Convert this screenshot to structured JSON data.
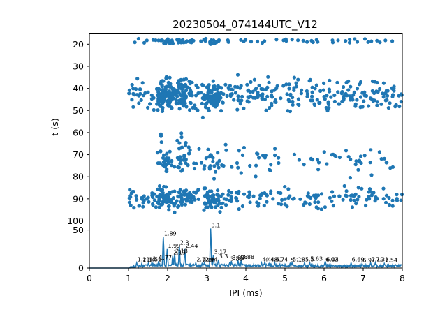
{
  "chart_data": [
    {
      "type": "scatter",
      "title": "20230504_074144UTC_V12",
      "xlabel": "",
      "ylabel": "t (s)",
      "xlim": [
        0,
        8
      ],
      "ylim": [
        100,
        15
      ],
      "y_inverted": true,
      "yticks": [
        20,
        30,
        40,
        50,
        60,
        70,
        80,
        90,
        100
      ],
      "marker_color": "#1f77b4",
      "bands": [
        {
          "t_center": 18.5,
          "t_spread": 1.2,
          "x_range": [
            1.1,
            8.0
          ],
          "count": 95
        },
        {
          "t_center": 43.0,
          "t_spread": 7.0,
          "x_range": [
            1.0,
            8.0
          ],
          "count": 520
        },
        {
          "t_center": 64.0,
          "t_spread": 5.0,
          "x_range": [
            1.8,
            2.5
          ],
          "count": 12
        },
        {
          "t_center": 73.0,
          "t_spread": 6.0,
          "x_range": [
            1.4,
            8.0
          ],
          "count": 140
        },
        {
          "t_center": 90.0,
          "t_spread": 4.5,
          "x_range": [
            1.0,
            8.0
          ],
          "count": 330
        }
      ],
      "peaks": [
        {
          "x": 1.89,
          "t": 45
        },
        {
          "x": 1.99,
          "t": 44
        },
        {
          "x": 2.3,
          "t": 42
        },
        {
          "x": 2.44,
          "t": 43
        },
        {
          "x": 3.1,
          "t": 41
        },
        {
          "x": 3.17,
          "t": 44
        }
      ]
    },
    {
      "type": "line",
      "title": "",
      "xlabel": "IPI (ms)",
      "ylabel": "",
      "xlim": [
        0,
        8
      ],
      "ylim": [
        0,
        62
      ],
      "xticks": [
        0,
        1,
        2,
        3,
        4,
        5,
        6,
        7,
        8
      ],
      "yticks": [
        0,
        50
      ],
      "line_color": "#1f77b4",
      "peaks": [
        {
          "x": 1.21,
          "y": 7,
          "label": "1.21"
        },
        {
          "x": 1.34,
          "y": 6,
          "label": "1.34"
        },
        {
          "x": 1.51,
          "y": 7,
          "label": "1.51"
        },
        {
          "x": 1.6,
          "y": 8,
          "label": "1.6"
        },
        {
          "x": 1.77,
          "y": 9,
          "label": "1.77"
        },
        {
          "x": 1.89,
          "y": 41,
          "label": "1.89"
        },
        {
          "x": 1.99,
          "y": 25,
          "label": "1.99"
        },
        {
          "x": 2.13,
          "y": 16,
          "label": "2.13"
        },
        {
          "x": 2.18,
          "y": 18,
          "label": "2.18"
        },
        {
          "x": 2.3,
          "y": 29,
          "label": "2.3"
        },
        {
          "x": 2.44,
          "y": 25,
          "label": "2.44"
        },
        {
          "x": 2.72,
          "y": 7,
          "label": "2.72"
        },
        {
          "x": 2.88,
          "y": 6,
          "label": "2.88"
        },
        {
          "x": 2.94,
          "y": 7,
          "label": "2.94"
        },
        {
          "x": 3.1,
          "y": 52,
          "label": "3.1"
        },
        {
          "x": 3.17,
          "y": 17,
          "label": "3.17"
        },
        {
          "x": 3.3,
          "y": 11,
          "label": "3.3"
        },
        {
          "x": 3.59,
          "y": 8,
          "label": "3.59"
        },
        {
          "x": 3.63,
          "y": 9,
          "label": "3.63"
        },
        {
          "x": 3.8,
          "y": 10,
          "label": "3.8"
        },
        {
          "x": 3.88,
          "y": 10,
          "label": "3.88"
        },
        {
          "x": 4.4,
          "y": 7,
          "label": "4.4"
        },
        {
          "x": 4.48,
          "y": 7,
          "label": "4.48"
        },
        {
          "x": 4.61,
          "y": 7,
          "label": "4.61"
        },
        {
          "x": 4.74,
          "y": 7,
          "label": "4.74"
        },
        {
          "x": 5.13,
          "y": 6,
          "label": "5.13"
        },
        {
          "x": 5.18,
          "y": 7,
          "label": "5.18"
        },
        {
          "x": 5.5,
          "y": 7,
          "label": "5.5"
        },
        {
          "x": 5.63,
          "y": 8,
          "label": "5.63"
        },
        {
          "x": 6.02,
          "y": 7,
          "label": "6.02"
        },
        {
          "x": 6.04,
          "y": 7,
          "label": "6.04"
        },
        {
          "x": 6.69,
          "y": 7,
          "label": "6.69"
        },
        {
          "x": 6.97,
          "y": 6,
          "label": "6.97"
        },
        {
          "x": 7.19,
          "y": 7,
          "label": "7.19"
        },
        {
          "x": 7.31,
          "y": 7,
          "label": "7.31"
        },
        {
          "x": 7.54,
          "y": 6,
          "label": "7.54"
        }
      ]
    }
  ]
}
